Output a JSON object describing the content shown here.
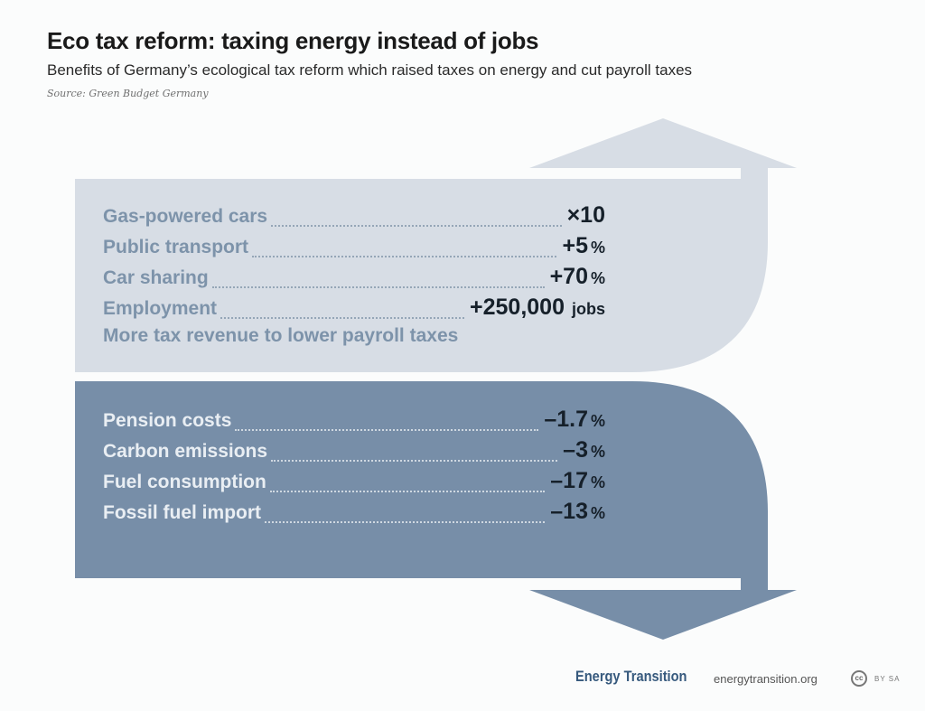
{
  "header": {
    "title": "Eco tax reform: taxing energy instead of jobs",
    "subtitle": "Benefits of Germany’s ecological tax reform which raised taxes on energy and cut payroll taxes",
    "source": "Source: Green Budget Germany"
  },
  "colors": {
    "upper_arrow": "#d7dde5",
    "lower_arrow": "#778ea8",
    "upper_text": "#7d93aa",
    "lower_text": "#e9eef3",
    "values": "#16202a"
  },
  "upper_block": {
    "items": [
      {
        "label": "Gas-powered cars",
        "value": "×10",
        "unit": ""
      },
      {
        "label": "Public transport",
        "value": "+5",
        "unit": "%"
      },
      {
        "label": "Car sharing",
        "value": "+70",
        "unit": "%"
      },
      {
        "label": "Employment",
        "value": "+250,000",
        "unit": "jobs"
      }
    ],
    "note": "More tax revenue to lower payroll taxes"
  },
  "lower_block": {
    "items": [
      {
        "label": "Pension costs",
        "value": "–1.7",
        "unit": "%"
      },
      {
        "label": "Carbon emissions",
        "value": "–3",
        "unit": "%"
      },
      {
        "label": "Fuel consumption",
        "value": "–17",
        "unit": "%"
      },
      {
        "label": "Fossil fuel import",
        "value": "–13",
        "unit": "%"
      }
    ]
  },
  "footer": {
    "brand": "Energy Transition",
    "url": "energytransition.org",
    "license_icon": "cc-icon",
    "license_icon_text": "cc",
    "license": "BY SA"
  }
}
